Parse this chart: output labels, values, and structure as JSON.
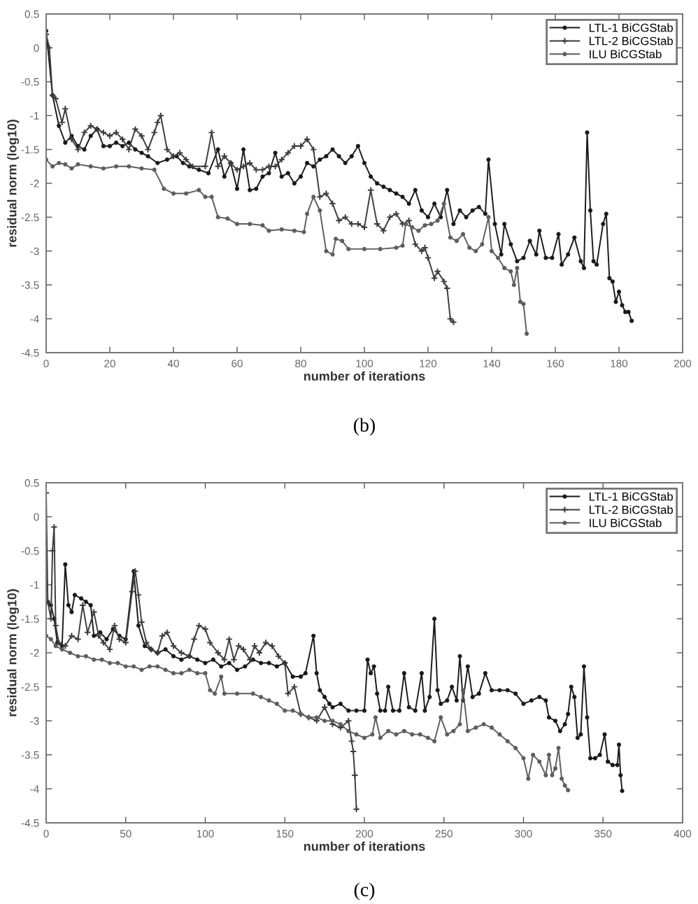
{
  "chart_data": [
    {
      "type": "line",
      "xlabel": "number of iterations",
      "ylabel": "residual norm (log10)",
      "annotations": [
        "(b)"
      ],
      "xlim": [
        0,
        200
      ],
      "xticks": [
        0,
        20,
        40,
        60,
        80,
        100,
        120,
        140,
        160,
        180,
        200
      ],
      "ylim": [
        -4.5,
        0.5
      ],
      "yticks": [
        -4.5,
        -4,
        -3.5,
        -3,
        -2.5,
        -2,
        -1.5,
        -1,
        -0.5,
        0,
        0.5
      ],
      "grid": false,
      "legend": "top right",
      "series": [
        {
          "name": "LTL-1 BiCGStab",
          "color": "#1a1a1a",
          "marker": "circle",
          "x": [
            0,
            2,
            4,
            6,
            8,
            10,
            12,
            14,
            16,
            18,
            20,
            22,
            24,
            26,
            28,
            30,
            32,
            35,
            38,
            41,
            43,
            45,
            48,
            51,
            54,
            56,
            58,
            60,
            62,
            64,
            66,
            68,
            70,
            72,
            74,
            76,
            78,
            80,
            82,
            84,
            86,
            88,
            90,
            92,
            94,
            96,
            98,
            100,
            102,
            104,
            106,
            108,
            110,
            112,
            114,
            116,
            118,
            120,
            122,
            124,
            126,
            128,
            130,
            132,
            134,
            136,
            138,
            139,
            141,
            143,
            144,
            146,
            148,
            150,
            152,
            154,
            155,
            157,
            159,
            161,
            162,
            164,
            166,
            168,
            169,
            170,
            171,
            172,
            173,
            175,
            176,
            177,
            178,
            179,
            180,
            181,
            182,
            183,
            184
          ],
          "values": [
            0.25,
            -0.7,
            -1.15,
            -1.4,
            -1.3,
            -1.45,
            -1.5,
            -1.3,
            -1.2,
            -1.45,
            -1.45,
            -1.4,
            -1.45,
            -1.4,
            -1.5,
            -1.55,
            -1.6,
            -1.7,
            -1.65,
            -1.6,
            -1.7,
            -1.75,
            -1.8,
            -1.85,
            -1.5,
            -1.9,
            -1.7,
            -2.08,
            -1.5,
            -2.1,
            -2.08,
            -1.9,
            -1.85,
            -1.55,
            -1.9,
            -1.85,
            -2.0,
            -1.9,
            -1.7,
            -1.75,
            -1.65,
            -1.6,
            -1.5,
            -1.6,
            -1.7,
            -1.6,
            -1.45,
            -1.7,
            -1.9,
            -2.0,
            -2.05,
            -2.1,
            -2.15,
            -2.2,
            -2.3,
            -2.1,
            -2.4,
            -2.5,
            -2.3,
            -2.5,
            -2.1,
            -2.6,
            -2.4,
            -2.5,
            -2.4,
            -2.35,
            -2.45,
            -1.65,
            -2.6,
            -3.05,
            -2.6,
            -2.9,
            -3.15,
            -3.1,
            -2.85,
            -3.05,
            -2.7,
            -3.1,
            -3.1,
            -2.75,
            -3.2,
            -3.05,
            -2.8,
            -3.15,
            -3.25,
            -1.25,
            -2.4,
            -3.15,
            -3.2,
            -2.6,
            -2.45,
            -3.4,
            -3.45,
            -3.75,
            -3.6,
            -3.8,
            -3.9,
            -3.9,
            -4.03
          ]
        },
        {
          "name": "LTL-2 BiCGStab",
          "color": "#3c3c3c",
          "marker": "cross",
          "x": [
            0,
            1,
            2,
            3,
            5,
            6,
            8,
            10,
            12,
            14,
            16,
            18,
            20,
            22,
            24,
            26,
            28,
            30,
            32,
            34,
            35,
            36,
            38,
            40,
            42,
            44,
            46,
            50,
            52,
            54,
            56,
            58,
            60,
            62,
            64,
            66,
            68,
            70,
            72,
            74,
            76,
            78,
            80,
            82,
            84,
            86,
            88,
            90,
            92,
            94,
            96,
            98,
            100,
            102,
            104,
            106,
            108,
            110,
            112,
            114,
            116,
            118,
            119,
            120,
            122,
            123,
            125,
            126,
            127,
            128
          ],
          "values": [
            0.2,
            0.0,
            -0.7,
            -0.75,
            -1.1,
            -0.9,
            -1.35,
            -1.5,
            -1.25,
            -1.15,
            -1.2,
            -1.25,
            -1.3,
            -1.25,
            -1.35,
            -1.5,
            -1.2,
            -1.3,
            -1.5,
            -1.25,
            -1.1,
            -1.0,
            -1.5,
            -1.6,
            -1.55,
            -1.65,
            -1.75,
            -1.75,
            -1.25,
            -1.75,
            -1.6,
            -1.7,
            -1.8,
            -1.75,
            -1.7,
            -1.8,
            -1.8,
            -1.75,
            -1.75,
            -1.65,
            -1.55,
            -1.45,
            -1.45,
            -1.35,
            -1.5,
            -2.2,
            -2.15,
            -2.3,
            -2.55,
            -2.5,
            -2.6,
            -2.6,
            -2.65,
            -2.1,
            -2.6,
            -2.7,
            -2.5,
            -2.45,
            -2.6,
            -2.55,
            -2.9,
            -3.0,
            -2.95,
            -3.1,
            -3.4,
            -3.3,
            -3.45,
            -3.55,
            -4.0,
            -4.05
          ]
        },
        {
          "name": "ILU BiCGStab",
          "color": "#5e5e5e",
          "marker": "circle",
          "x": [
            0,
            2,
            4,
            6,
            8,
            10,
            14,
            18,
            22,
            26,
            30,
            34,
            37,
            40,
            44,
            48,
            50,
            52,
            54,
            57,
            60,
            64,
            68,
            70,
            74,
            78,
            81,
            82,
            84,
            86,
            88,
            90,
            91,
            93,
            95,
            100,
            105,
            110,
            112,
            113,
            115,
            117,
            119,
            121,
            123,
            125,
            127,
            129,
            131,
            133,
            135,
            137,
            139,
            140,
            142,
            144,
            146,
            147,
            148,
            149,
            150,
            151
          ],
          "values": [
            -1.65,
            -1.75,
            -1.7,
            -1.72,
            -1.78,
            -1.72,
            -1.75,
            -1.78,
            -1.75,
            -1.75,
            -1.78,
            -1.8,
            -2.08,
            -2.15,
            -2.15,
            -2.1,
            -2.2,
            -2.2,
            -2.5,
            -2.52,
            -2.6,
            -2.6,
            -2.62,
            -2.7,
            -2.68,
            -2.7,
            -2.72,
            -2.45,
            -2.2,
            -2.4,
            -3.0,
            -3.05,
            -2.82,
            -2.85,
            -2.97,
            -2.97,
            -2.97,
            -2.95,
            -2.92,
            -2.6,
            -2.65,
            -2.7,
            -2.62,
            -2.6,
            -2.55,
            -2.3,
            -2.8,
            -2.85,
            -2.75,
            -2.95,
            -3.0,
            -2.9,
            -2.5,
            -3.0,
            -3.1,
            -3.25,
            -3.3,
            -3.5,
            -3.25,
            -3.75,
            -3.78,
            -4.22
          ]
        }
      ]
    },
    {
      "type": "line",
      "xlabel": "number of iterations",
      "ylabel": "residual norm (log10)",
      "annotations": [
        "(c)"
      ],
      "xlim": [
        0,
        400
      ],
      "xticks": [
        0,
        50,
        100,
        150,
        200,
        250,
        300,
        350,
        400
      ],
      "ylim": [
        -4.5,
        0.5
      ],
      "yticks": [
        -4.5,
        -4,
        -3.5,
        -3,
        -2.5,
        -2,
        -1.5,
        -1,
        -0.5,
        0,
        0.5
      ],
      "grid": false,
      "legend": "top right",
      "series": [
        {
          "name": "LTL-1 BiCGStab",
          "color": "#1a1a1a",
          "marker": "circle",
          "x": [
            1,
            3,
            5,
            7,
            10,
            12,
            14,
            16,
            18,
            22,
            25,
            28,
            30,
            34,
            38,
            42,
            46,
            50,
            55,
            58,
            62,
            66,
            70,
            75,
            80,
            85,
            90,
            95,
            100,
            105,
            110,
            115,
            120,
            125,
            130,
            135,
            140,
            145,
            150,
            155,
            160,
            163,
            168,
            170,
            172,
            175,
            178,
            180,
            185,
            190,
            195,
            200,
            202,
            204,
            206,
            208,
            210,
            213,
            215,
            218,
            222,
            225,
            228,
            232,
            236,
            238,
            241,
            244,
            246,
            248,
            252,
            255,
            258,
            260,
            262,
            265,
            268,
            272,
            276,
            280,
            285,
            290,
            295,
            300,
            305,
            310,
            314,
            316,
            320,
            323,
            326,
            328,
            330,
            332,
            334,
            336,
            338,
            340,
            342,
            345,
            348,
            351,
            353,
            356,
            359,
            360,
            361,
            362
          ],
          "values": [
            -1.25,
            -1.3,
            -1.5,
            -1.85,
            -1.9,
            -0.7,
            -1.3,
            -1.4,
            -1.15,
            -1.2,
            -1.25,
            -1.3,
            -1.75,
            -1.7,
            -1.8,
            -1.65,
            -1.75,
            -1.8,
            -0.8,
            -1.6,
            -1.9,
            -1.95,
            -2.0,
            -1.95,
            -2.05,
            -2.1,
            -2.05,
            -2.1,
            -2.15,
            -2.1,
            -2.2,
            -2.15,
            -2.25,
            -2.2,
            -2.1,
            -2.15,
            -2.15,
            -2.2,
            -2.15,
            -2.35,
            -2.35,
            -2.3,
            -1.75,
            -2.3,
            -2.55,
            -2.65,
            -2.75,
            -2.8,
            -2.75,
            -2.85,
            -2.85,
            -2.85,
            -2.1,
            -2.3,
            -2.2,
            -2.6,
            -2.85,
            -2.85,
            -2.5,
            -2.85,
            -2.85,
            -2.3,
            -2.8,
            -2.85,
            -2.3,
            -2.85,
            -2.65,
            -1.5,
            -2.55,
            -2.75,
            -2.7,
            -2.5,
            -2.7,
            -2.05,
            -2.7,
            -2.2,
            -2.65,
            -2.6,
            -2.3,
            -2.55,
            -2.55,
            -2.55,
            -2.6,
            -2.75,
            -2.7,
            -2.65,
            -2.7,
            -2.95,
            -3.0,
            -3.15,
            -3.05,
            -2.9,
            -2.5,
            -2.65,
            -3.25,
            -3.2,
            -2.2,
            -2.95,
            -3.55,
            -3.55,
            -3.5,
            -3.2,
            -3.6,
            -3.65,
            -3.65,
            -3.35,
            -3.8,
            -4.03
          ]
        },
        {
          "name": "LTL-2 BiCGStab",
          "color": "#3c3c3c",
          "marker": "cross",
          "x": [
            0,
            1,
            3,
            4,
            5,
            6,
            8,
            12,
            16,
            20,
            23,
            26,
            30,
            33,
            36,
            40,
            43,
            46,
            50,
            54,
            56,
            58,
            60,
            63,
            66,
            70,
            73,
            76,
            80,
            85,
            90,
            93,
            96,
            100,
            103,
            108,
            112,
            115,
            118,
            121,
            124,
            128,
            131,
            134,
            138,
            142,
            146,
            150,
            152,
            156,
            160,
            165,
            170,
            175,
            180,
            185,
            190,
            192,
            193,
            194,
            195
          ],
          "values": [
            0.35,
            -1.25,
            -1.5,
            -0.5,
            -0.15,
            -1.6,
            -1.85,
            -1.9,
            -1.75,
            -1.8,
            -1.3,
            -1.7,
            -1.4,
            -1.75,
            -1.85,
            -1.95,
            -1.6,
            -1.8,
            -1.85,
            -1.1,
            -0.8,
            -1.15,
            -1.55,
            -1.85,
            -1.95,
            -2.0,
            -1.75,
            -1.7,
            -1.9,
            -2.0,
            -2.05,
            -1.8,
            -1.6,
            -1.65,
            -1.85,
            -2.0,
            -2.1,
            -1.8,
            -2.1,
            -1.9,
            -1.95,
            -2.1,
            -1.9,
            -2.0,
            -1.85,
            -1.9,
            -2.05,
            -2.15,
            -2.6,
            -2.5,
            -2.9,
            -2.95,
            -3.0,
            -2.8,
            -3.05,
            -3.1,
            -3.0,
            -3.3,
            -3.45,
            -3.8,
            -4.3
          ]
        },
        {
          "name": "ILU BiCGStab",
          "color": "#5e5e5e",
          "marker": "circle",
          "x": [
            0,
            3,
            6,
            10,
            15,
            20,
            25,
            30,
            35,
            40,
            45,
            50,
            55,
            60,
            65,
            70,
            75,
            80,
            85,
            90,
            95,
            100,
            103,
            106,
            110,
            112,
            120,
            130,
            135,
            140,
            145,
            150,
            155,
            160,
            165,
            170,
            175,
            180,
            185,
            190,
            195,
            200,
            205,
            207,
            210,
            215,
            220,
            225,
            230,
            235,
            240,
            244,
            248,
            252,
            256,
            260,
            262,
            265,
            270,
            275,
            280,
            285,
            290,
            295,
            300,
            303,
            306,
            310,
            314,
            316,
            318,
            320,
            322,
            324,
            326,
            328
          ],
          "values": [
            -1.75,
            -1.8,
            -1.9,
            -1.95,
            -2.0,
            -2.05,
            -2.05,
            -2.1,
            -2.1,
            -2.15,
            -2.15,
            -2.2,
            -2.2,
            -2.25,
            -2.2,
            -2.2,
            -2.25,
            -2.3,
            -2.3,
            -2.25,
            -2.3,
            -2.3,
            -2.55,
            -2.6,
            -2.35,
            -2.6,
            -2.6,
            -2.6,
            -2.65,
            -2.7,
            -2.75,
            -2.85,
            -2.85,
            -2.9,
            -2.95,
            -2.95,
            -3.0,
            -3.0,
            -3.05,
            -3.15,
            -3.2,
            -3.25,
            -3.2,
            -2.95,
            -3.25,
            -3.15,
            -3.2,
            -3.15,
            -3.2,
            -3.2,
            -3.25,
            -3.3,
            -2.95,
            -3.2,
            -3.15,
            -3.05,
            -2.55,
            -3.15,
            -3.1,
            -3.05,
            -3.1,
            -3.2,
            -3.3,
            -3.4,
            -3.55,
            -3.85,
            -3.5,
            -3.6,
            -3.8,
            -3.5,
            -3.8,
            -3.7,
            -3.4,
            -3.85,
            -3.95,
            -4.02
          ]
        }
      ]
    }
  ]
}
